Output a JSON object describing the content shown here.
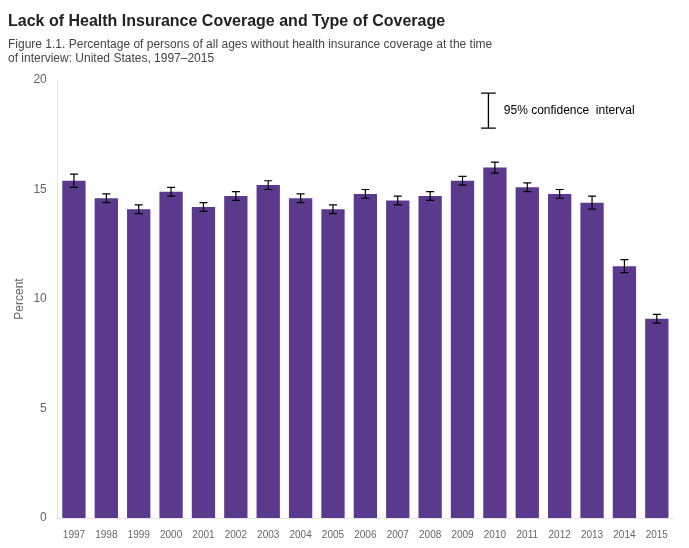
{
  "chart_data": {
    "type": "bar",
    "title": "Lack of Health Insurance Coverage and Type of Coverage",
    "subtitle": "Figure 1.1. Percentage of persons of all ages without health insurance coverage at the time\nof interview: United States, 1997–2015",
    "ylabel": "Percent",
    "categories": [
      "1997",
      "1998",
      "1999",
      "2000",
      "2001",
      "2002",
      "2003",
      "2004",
      "2005",
      "2006",
      "2007",
      "2008",
      "2009",
      "2010",
      "2011",
      "2012",
      "2013",
      "2014",
      "2015"
    ],
    "values": [
      15.4,
      14.6,
      14.1,
      14.9,
      14.2,
      14.7,
      15.2,
      14.6,
      14.1,
      14.8,
      14.5,
      14.7,
      15.4,
      16.0,
      15.1,
      14.8,
      14.4,
      11.5,
      9.1
    ],
    "errors": [
      0.3,
      0.2,
      0.2,
      0.2,
      0.2,
      0.2,
      0.2,
      0.2,
      0.2,
      0.2,
      0.2,
      0.2,
      0.2,
      0.25,
      0.2,
      0.2,
      0.3,
      0.3,
      0.2
    ],
    "color": "#5b3a8e",
    "ylim": [
      0,
      20
    ],
    "yticks": [
      0,
      5,
      10,
      15,
      20
    ],
    "grid": false,
    "annotation": "95% confidence  interval"
  }
}
